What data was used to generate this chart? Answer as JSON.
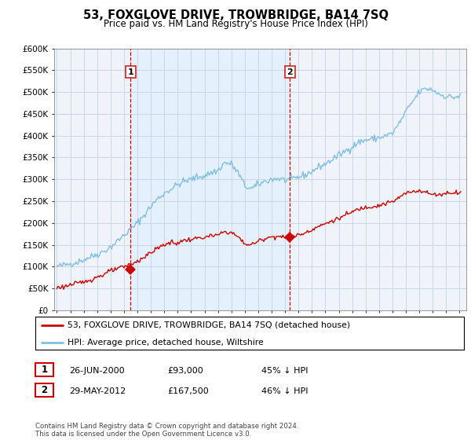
{
  "title": "53, FOXGLOVE DRIVE, TROWBRIDGE, BA14 7SQ",
  "subtitle": "Price paid vs. HM Land Registry's House Price Index (HPI)",
  "legend_line1": "53, FOXGLOVE DRIVE, TROWBRIDGE, BA14 7SQ (detached house)",
  "legend_line2": "HPI: Average price, detached house, Wiltshire",
  "footnote": "Contains HM Land Registry data © Crown copyright and database right 2024.\nThis data is licensed under the Open Government Licence v3.0.",
  "transaction1_date": "26-JUN-2000",
  "transaction1_price": "£93,000",
  "transaction1_hpi": "45% ↓ HPI",
  "transaction2_date": "29-MAY-2012",
  "transaction2_price": "£167,500",
  "transaction2_hpi": "46% ↓ HPI",
  "hpi_color": "#7fbfdf",
  "price_color": "#cc0000",
  "vline_color": "#cc0000",
  "fill_color": "#ddeeff",
  "grid_color": "#c8d8e8",
  "background_color": "#ffffff",
  "plot_bg_color": "#f0f4fa",
  "ylim": [
    0,
    600000
  ],
  "yticks": [
    0,
    50000,
    100000,
    150000,
    200000,
    250000,
    300000,
    350000,
    400000,
    450000,
    500000,
    550000,
    600000
  ],
  "ytick_labels": [
    "£0",
    "£50K",
    "£100K",
    "£150K",
    "£200K",
    "£250K",
    "£300K",
    "£350K",
    "£400K",
    "£450K",
    "£500K",
    "£550K",
    "£600K"
  ],
  "transaction1_x": 2000.5,
  "transaction1_y": 93000,
  "transaction2_x": 2012.37,
  "transaction2_y": 167500,
  "xlim_start": 1994.8,
  "xlim_end": 2025.5
}
